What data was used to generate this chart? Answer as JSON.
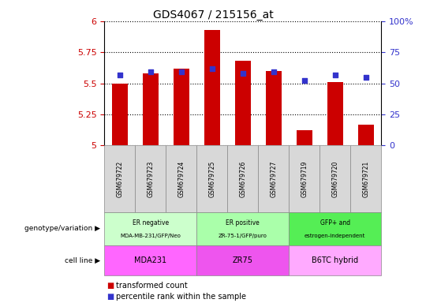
{
  "title": "GDS4067 / 215156_at",
  "samples": [
    "GSM679722",
    "GSM679723",
    "GSM679724",
    "GSM679725",
    "GSM679726",
    "GSM679727",
    "GSM679719",
    "GSM679720",
    "GSM679721"
  ],
  "transformed_count": [
    5.5,
    5.58,
    5.62,
    5.93,
    5.68,
    5.6,
    5.12,
    5.51,
    5.17
  ],
  "percentile_rank": [
    57,
    59,
    59,
    62,
    58,
    59,
    52,
    57,
    55
  ],
  "ylim": [
    5.0,
    6.0
  ],
  "y2lim": [
    0,
    100
  ],
  "yticks": [
    5.0,
    5.25,
    5.5,
    5.75,
    6.0
  ],
  "ytick_labels": [
    "5",
    "5.25",
    "5.5",
    "5.75",
    "6"
  ],
  "y2ticks": [
    0,
    25,
    50,
    75,
    100
  ],
  "y2tick_labels": [
    "0",
    "25",
    "50",
    "75",
    "100%"
  ],
  "bar_color": "#cc0000",
  "dot_color": "#3333cc",
  "groups": [
    {
      "label_top": "ER negative",
      "label_bot": "MDA-MB-231/GFP/Neo",
      "start": 0,
      "end": 3,
      "color": "#ccffcc"
    },
    {
      "label_top": "ER positive",
      "label_bot": "ZR-75-1/GFP/puro",
      "start": 3,
      "end": 6,
      "color": "#aaffaa"
    },
    {
      "label_top": "GFP+ and",
      "label_bot": "estrogen-independent",
      "start": 6,
      "end": 9,
      "color": "#55ee55"
    }
  ],
  "cell_lines": [
    {
      "label": "MDA231",
      "start": 0,
      "end": 3,
      "color": "#ff66ff"
    },
    {
      "label": "ZR75",
      "start": 3,
      "end": 6,
      "color": "#ee55ee"
    },
    {
      "label": "B6TC hybrid",
      "start": 6,
      "end": 9,
      "color": "#ffaaff"
    }
  ],
  "genotype_label": "genotype/variation",
  "cell_line_label": "cell line",
  "legend_bar": "transformed count",
  "legend_dot": "percentile rank within the sample",
  "tick_color_left": "#cc0000",
  "tick_color_right": "#3333cc",
  "bar_width": 0.5,
  "figsize": [
    5.4,
    3.84
  ],
  "dpi": 100
}
